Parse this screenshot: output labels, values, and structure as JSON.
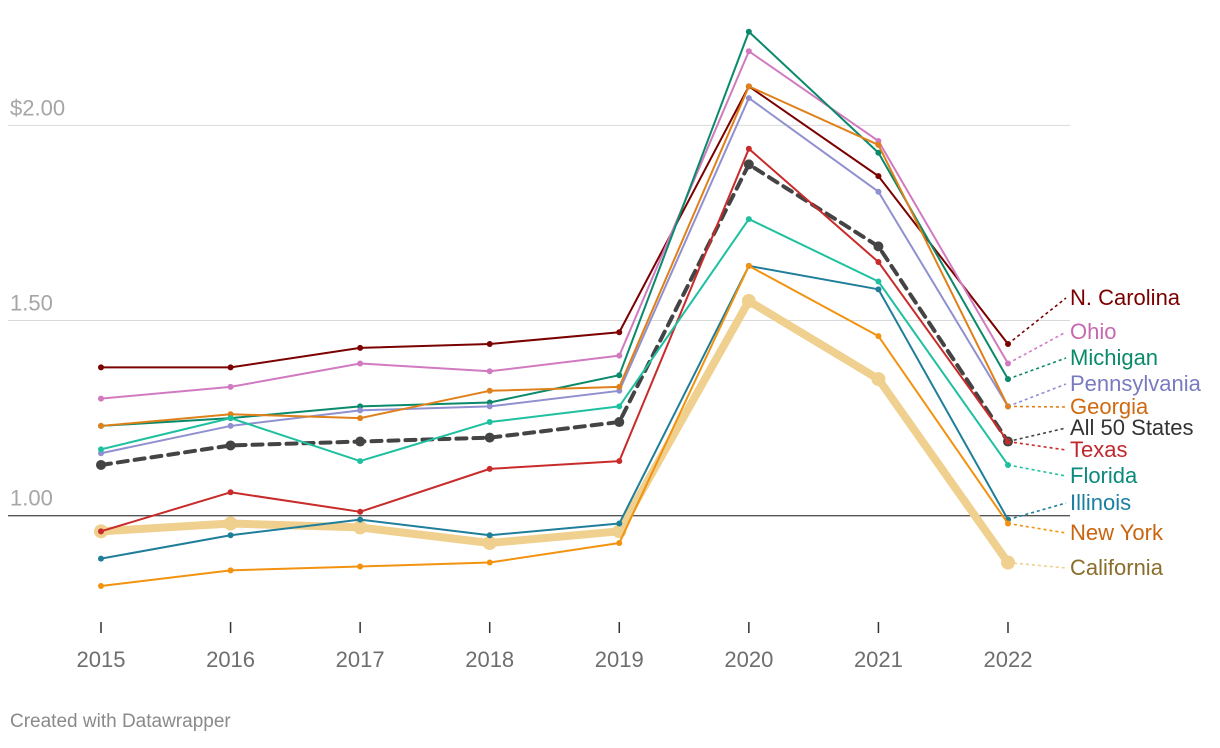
{
  "chart_data": {
    "type": "line",
    "x": [
      "2015",
      "2016",
      "2017",
      "2018",
      "2019",
      "2020",
      "2021",
      "2022"
    ],
    "ylim": [
      0.72,
      2.27
    ],
    "y_ticks": [
      {
        "value": 2.0,
        "label": "$2.00"
      },
      {
        "value": 1.5,
        "label": "1.50"
      },
      {
        "value": 1.0,
        "label": "1.00"
      }
    ],
    "baseline": 1.0,
    "series": [
      {
        "name": "N. Carolina",
        "color": "#7b0000",
        "label_color": "#7b0000",
        "dash": false,
        "width": 2,
        "marker": 3,
        "values": [
          1.38,
          1.38,
          1.43,
          1.44,
          1.47,
          2.1,
          1.87,
          1.44
        ]
      },
      {
        "name": "Ohio",
        "color": "#d17ac0",
        "label_color": "#c66ab0",
        "dash": false,
        "width": 2,
        "marker": 3,
        "values": [
          1.3,
          1.33,
          1.39,
          1.37,
          1.41,
          2.19,
          1.96,
          1.39
        ]
      },
      {
        "name": "Michigan",
        "color": "#0a8a6a",
        "label_color": "#0a8a6a",
        "dash": false,
        "width": 2,
        "marker": 3,
        "values": [
          1.23,
          1.25,
          1.28,
          1.29,
          1.36,
          2.24,
          1.93,
          1.35
        ]
      },
      {
        "name": "Pennsylvania",
        "color": "#9090d0",
        "label_color": "#7a7ac0",
        "dash": false,
        "width": 2,
        "marker": 3,
        "values": [
          1.16,
          1.23,
          1.27,
          1.28,
          1.32,
          2.07,
          1.83,
          1.28
        ]
      },
      {
        "name": "Georgia",
        "color": "#e0801a",
        "label_color": "#d06a10",
        "dash": false,
        "width": 2,
        "marker": 3,
        "values": [
          1.23,
          1.26,
          1.25,
          1.32,
          1.33,
          2.1,
          1.95,
          1.28
        ]
      },
      {
        "name": "All 50 States",
        "color": "#444444",
        "label_color": "#333333",
        "dash": true,
        "width": 4,
        "marker": 5,
        "values": [
          1.13,
          1.18,
          1.19,
          1.2,
          1.24,
          1.9,
          1.69,
          1.19
        ]
      },
      {
        "name": "Texas",
        "color": "#c92a2a",
        "label_color": "#c0282d",
        "dash": false,
        "width": 2,
        "marker": 3,
        "values": [
          0.96,
          1.06,
          1.01,
          1.12,
          1.14,
          1.94,
          1.65,
          1.19
        ]
      },
      {
        "name": "Florida",
        "color": "#1fc0a0",
        "label_color": "#0a8a7a",
        "dash": false,
        "width": 2,
        "marker": 3,
        "values": [
          1.17,
          1.25,
          1.14,
          1.24,
          1.28,
          1.76,
          1.6,
          1.13
        ]
      },
      {
        "name": "Illinois",
        "color": "#1f7e9a",
        "label_color": "#1a7fa0",
        "dash": false,
        "width": 2,
        "marker": 3,
        "values": [
          0.89,
          0.95,
          0.99,
          0.95,
          0.98,
          1.64,
          1.58,
          0.99
        ]
      },
      {
        "name": "New York",
        "color": "#f2920f",
        "label_color": "#c9650f",
        "dash": false,
        "width": 2,
        "marker": 3,
        "values": [
          0.82,
          0.86,
          0.87,
          0.88,
          0.93,
          1.64,
          1.46,
          0.98
        ]
      },
      {
        "name": "California",
        "color": "#efd08e",
        "label_color": "#8a6d2a",
        "dash": false,
        "width": 8,
        "marker": 7,
        "values": [
          0.96,
          0.98,
          0.97,
          0.93,
          0.96,
          1.55,
          1.35,
          0.88
        ]
      }
    ]
  },
  "footer": {
    "credit": "Created with Datawrapper"
  }
}
